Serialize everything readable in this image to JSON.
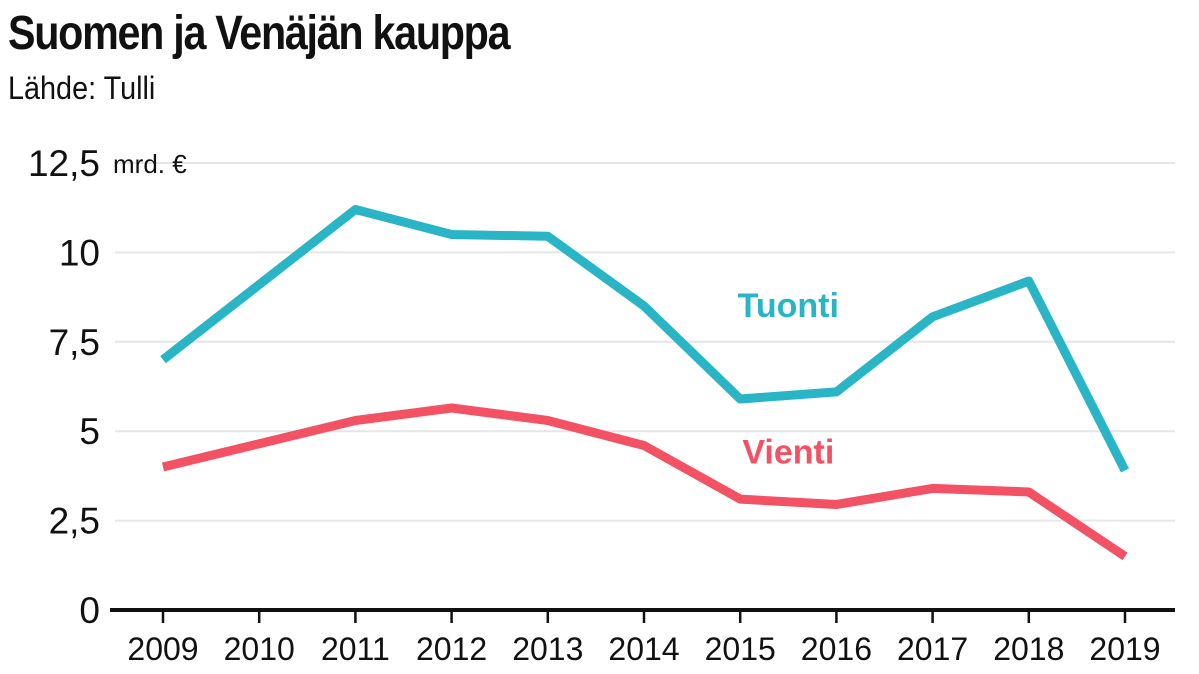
{
  "chart_data": {
    "type": "line",
    "title": "Suomen ja Venäjän kauppa",
    "subtitle": "Lähde: Tulli",
    "unit": "mrd. €",
    "x": [
      "2009",
      "2010",
      "2011",
      "2012",
      "2013",
      "2014",
      "2015",
      "2016",
      "2017",
      "2018",
      "2019"
    ],
    "y_ticks": [
      "0",
      "2,5",
      "5",
      "7,5",
      "10",
      "12,5"
    ],
    "y_tick_values": [
      0,
      2.5,
      5,
      7.5,
      10,
      12.5
    ],
    "ylim": [
      0,
      12.5
    ],
    "grid": true,
    "series": [
      {
        "name": "Tuonti",
        "color": "#29b5c6",
        "values": [
          7.0,
          9.1,
          11.2,
          10.5,
          10.45,
          8.5,
          5.9,
          6.1,
          8.2,
          9.2,
          3.9
        ]
      },
      {
        "name": "Vienti",
        "color": "#f25263",
        "values": [
          4.0,
          4.65,
          5.3,
          5.65,
          5.3,
          4.6,
          3.1,
          2.95,
          3.4,
          3.3,
          1.5
        ]
      }
    ]
  }
}
